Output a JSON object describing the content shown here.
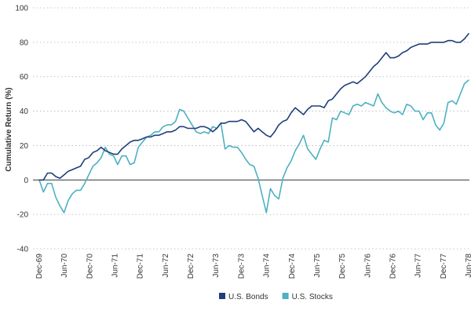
{
  "chart_data": {
    "type": "line",
    "title": "",
    "xlabel": "",
    "ylabel": "Cumulative Return (%)",
    "ylim": [
      -40,
      100
    ],
    "yticks": [
      -40,
      -20,
      0,
      20,
      40,
      60,
      80,
      100
    ],
    "grid": true,
    "legend_position": "bottom-center",
    "x_tick_labels": [
      "Dec-69",
      "Jun-70",
      "Dec-70",
      "Jun-71",
      "Dec-71",
      "Jun-72",
      "Dec-72",
      "Jun-73",
      "Dec-73",
      "Jun-74",
      "Dec-74",
      "Jun-75",
      "Dec-75",
      "Jun-76",
      "Dec-76",
      "Jun-77",
      "Dec-77",
      "Jun-78"
    ],
    "series": [
      {
        "name": "U.S. Bonds",
        "color": "#1f3f7a",
        "values": [
          0,
          0,
          4,
          4,
          2,
          1,
          3,
          5,
          6,
          7,
          8,
          12,
          13,
          16,
          17,
          19,
          17,
          16,
          15,
          15,
          18,
          20,
          22,
          23,
          23,
          24,
          25,
          25,
          26,
          26,
          27,
          28,
          28,
          29,
          31,
          31,
          30,
          30,
          30,
          31,
          31,
          30,
          28,
          30,
          33,
          33,
          34,
          34,
          34,
          35,
          34,
          31,
          28,
          30,
          28,
          26,
          25,
          28,
          32,
          34,
          35,
          39,
          42,
          40,
          38,
          41,
          43,
          43,
          43,
          42,
          46,
          47,
          50,
          53,
          55,
          56,
          57,
          56,
          58,
          60,
          63,
          66,
          68,
          71,
          74,
          71,
          71,
          72,
          74,
          75,
          77,
          78,
          79,
          79,
          79,
          80,
          80,
          80,
          80,
          81,
          81,
          80,
          80,
          82,
          85
        ]
      },
      {
        "name": "U.S. Stocks",
        "color": "#4cb1c1",
        "values": [
          0,
          -7,
          -2,
          -2,
          -10,
          -15,
          -19,
          -12,
          -8,
          -6,
          -6,
          -2,
          3,
          8,
          10,
          13,
          19,
          15,
          14,
          9,
          14,
          14,
          9,
          10,
          19,
          22,
          25,
          26,
          28,
          28,
          31,
          32,
          32,
          34,
          41,
          40,
          36,
          32,
          28,
          27,
          28,
          27,
          31,
          30,
          33,
          18,
          20,
          19,
          19,
          16,
          12,
          9,
          8,
          1,
          -9,
          -19,
          -5,
          -9,
          -11,
          1,
          7,
          11,
          17,
          21,
          26,
          18,
          15,
          12,
          18,
          23,
          22,
          36,
          35,
          40,
          39,
          38,
          43,
          44,
          43,
          45,
          44,
          43,
          50,
          45,
          42,
          40,
          39,
          40,
          38,
          44,
          43,
          40,
          40,
          35,
          39,
          39,
          32,
          29,
          33,
          45,
          46,
          44,
          50,
          56,
          58
        ]
      }
    ]
  }
}
